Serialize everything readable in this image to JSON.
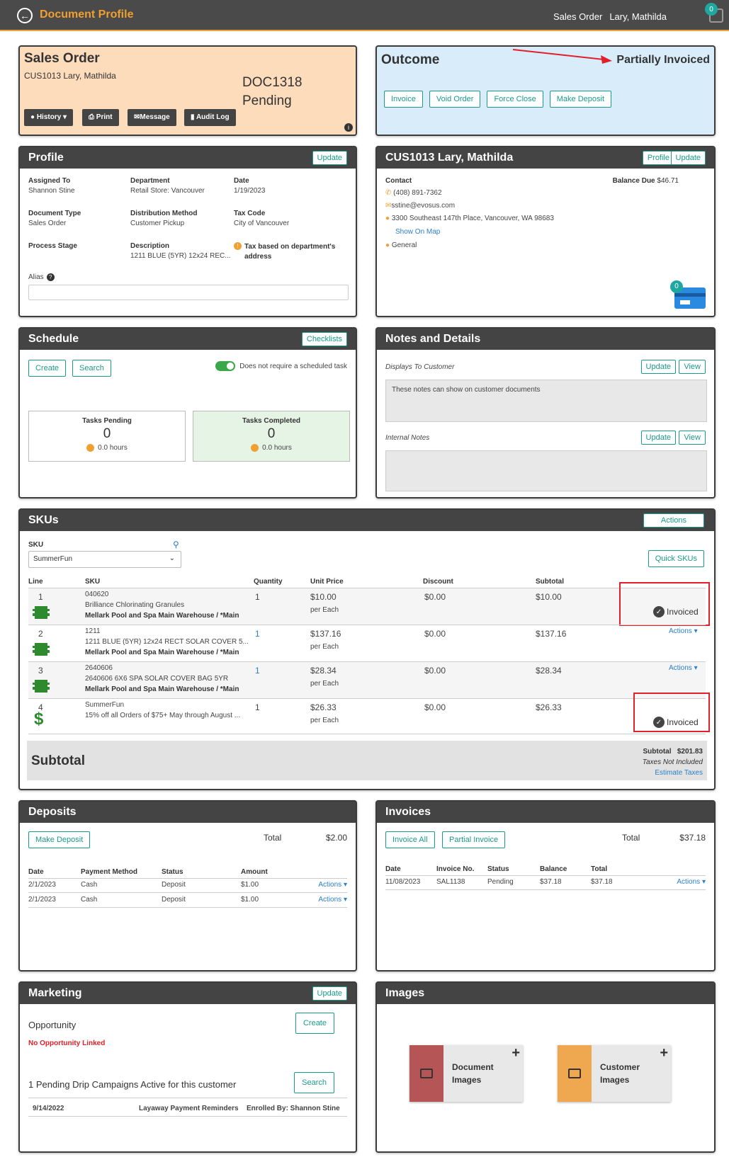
{
  "topbar": {
    "title": "Document Profile",
    "doc_type": "Sales Order",
    "customer": "Lary, Mathilda",
    "badge": "0"
  },
  "sales_order": {
    "title": "Sales Order",
    "customer": "CUS1013 Lary, Mathilda",
    "doc_number": "DOC1318",
    "status": "Pending",
    "buttons": {
      "history": "History",
      "print": "Print",
      "message": "Message",
      "audit": "Audit Log"
    }
  },
  "outcome": {
    "title": "Outcome",
    "status": "Partially Invoiced",
    "buttons": {
      "invoice": "Invoice",
      "void": "Void Order",
      "force_close": "Force Close",
      "deposit": "Make Deposit"
    }
  },
  "profile": {
    "title": "Profile",
    "update": "Update",
    "fields": {
      "assigned_to_label": "Assigned To",
      "assigned_to": "Shannon Stine",
      "department_label": "Department",
      "department": "Retail Store: Vancouver",
      "date_label": "Date",
      "date": "1/19/2023",
      "doc_type_label": "Document Type",
      "doc_type": "Sales Order",
      "dist_label": "Distribution Method",
      "dist": "Customer Pickup",
      "tax_label": "Tax Code",
      "tax": "City of Vancouver",
      "stage_label": "Process Stage",
      "desc_label": "Description",
      "desc": "1211 BLUE (5YR) 12x24 REC...",
      "tax_note": "Tax based on department's address",
      "alias_label": "Alias"
    }
  },
  "customer": {
    "title": "CUS1013 Lary, Mathilda",
    "profile_btn": "Profile",
    "update_btn": "Update",
    "contact_label": "Contact",
    "phone": "(408) 891-7362",
    "email": "sstine@evosus.com",
    "address": "3300 Southeast 147th Place, Vancouver, WA 98683",
    "map": "Show On Map",
    "type": "General",
    "balance_label": "Balance Due",
    "balance": "$46.71",
    "card_badge": "0"
  },
  "schedule": {
    "title": "Schedule",
    "checklists": "Checklists",
    "create": "Create",
    "search": "Search",
    "toggle_label": "Does not require a scheduled task",
    "pending": {
      "label": "Tasks Pending",
      "count": "0",
      "hours": "0.0 hours"
    },
    "completed": {
      "label": "Tasks Completed",
      "count": "0",
      "hours": "0.0 hours"
    }
  },
  "notes": {
    "title": "Notes and Details",
    "display_label": "Displays To Customer",
    "display_text": "These notes can show on customer documents",
    "internal_label": "Internal Notes",
    "update": "Update",
    "view": "View"
  },
  "skus": {
    "title": "SKUs",
    "actions": "Actions",
    "sku_label": "SKU",
    "sku_value": "SummerFun",
    "quick": "Quick SKUs",
    "headers": {
      "line": "Line",
      "sku": "SKU",
      "qty": "Quantity",
      "price": "Unit Price",
      "discount": "Discount",
      "subtotal": "Subtotal"
    },
    "rows": [
      {
        "line": "1",
        "code": "040620",
        "name": "Brilliance Chlorinating Granules",
        "wh": "Mellark Pool and Spa Main Warehouse / *Main",
        "qty": "1",
        "price": "$10.00",
        "per": "per Each",
        "discount": "$0.00",
        "subtotal": "$10.00",
        "status": "Invoiced"
      },
      {
        "line": "2",
        "code": "1211",
        "name": "1211 BLUE (5YR) 12x24 RECT SOLAR COVER 5...",
        "wh": "Mellark Pool and Spa Main Warehouse / *Main",
        "qty": "1",
        "price": "$137.16",
        "per": "per Each",
        "discount": "$0.00",
        "subtotal": "$137.16",
        "status": "Actions"
      },
      {
        "line": "3",
        "code": "2640606",
        "name": "2640606 6X6 SPA SOLAR COVER BAG 5YR",
        "wh": "Mellark Pool and Spa Main Warehouse / *Main",
        "qty": "1",
        "price": "$28.34",
        "per": "per Each",
        "discount": "$0.00",
        "subtotal": "$28.34",
        "status": "Actions"
      },
      {
        "line": "4",
        "code": "SummerFun",
        "name": "15% off all Orders of $75+ May through August ...",
        "wh": "",
        "qty": "1",
        "price": "$26.33",
        "per": "per Each",
        "discount": "$0.00",
        "subtotal": "$26.33",
        "status": "Invoiced"
      }
    ],
    "subtotal_title": "Subtotal",
    "subtotal_label": "Subtotal",
    "subtotal_value": "$201.83",
    "taxes_note": "Taxes Not Included",
    "estimate": "Estimate Taxes"
  },
  "deposits": {
    "title": "Deposits",
    "make": "Make Deposit",
    "total_label": "Total",
    "total": "$2.00",
    "headers": {
      "date": "Date",
      "method": "Payment Method",
      "status": "Status",
      "amount": "Amount"
    },
    "rows": [
      {
        "date": "2/1/2023",
        "method": "Cash",
        "status": "Deposit",
        "amount": "$1.00",
        "actions": "Actions"
      },
      {
        "date": "2/1/2023",
        "method": "Cash",
        "status": "Deposit",
        "amount": "$1.00",
        "actions": "Actions"
      }
    ]
  },
  "invoices": {
    "title": "Invoices",
    "all": "Invoice All",
    "partial": "Partial Invoice",
    "total_label": "Total",
    "total": "$37.18",
    "headers": {
      "date": "Date",
      "no": "Invoice No.",
      "status": "Status",
      "balance": "Balance",
      "total": "Total"
    },
    "rows": [
      {
        "date": "11/08/2023",
        "no": "SAL1138",
        "status": "Pending",
        "balance": "$37.18",
        "total": "$37.18",
        "actions": "Actions"
      }
    ]
  },
  "marketing": {
    "title": "Marketing",
    "update": "Update",
    "opportunity": "Opportunity",
    "create": "Create",
    "no_opp": "No Opportunity Linked",
    "drip": "1 Pending Drip Campaigns Active for this customer",
    "search": "Search",
    "campaign": {
      "date": "9/14/2022",
      "name": "Layaway Payment Reminders",
      "enrolled": "Enrolled By: Shannon Stine"
    }
  },
  "images": {
    "title": "Images",
    "doc": "Document Images",
    "cust": "Customer Images"
  },
  "colors": {
    "accent": "#f0a030",
    "teal": "#1a9a8a",
    "red": "#e0202a"
  }
}
